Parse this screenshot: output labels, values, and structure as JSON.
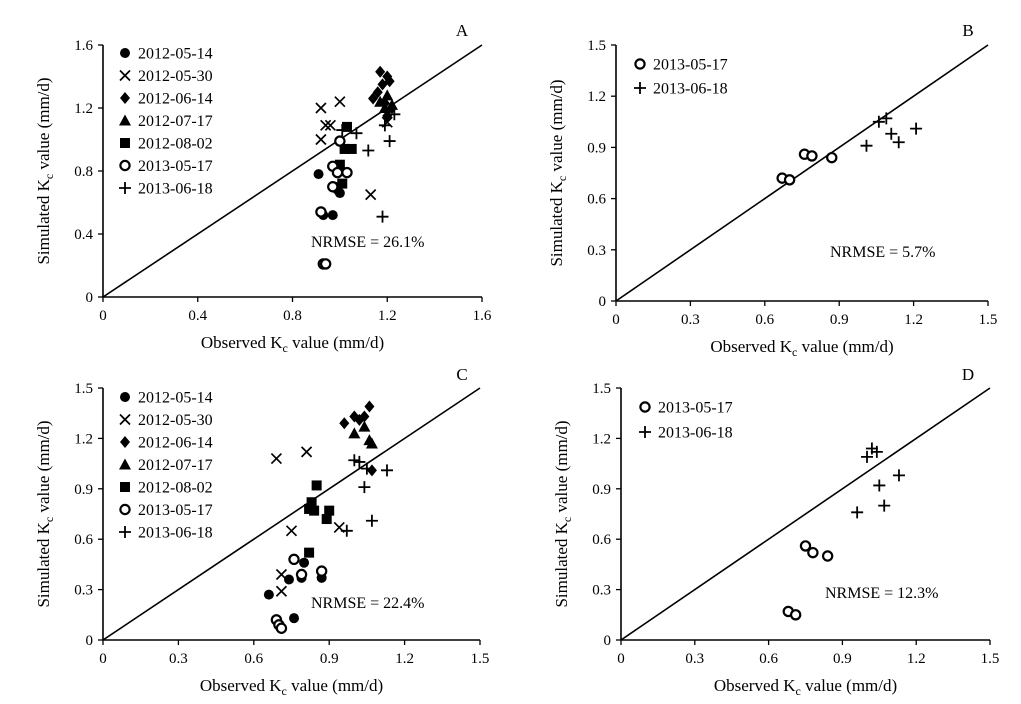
{
  "chart_data": [
    {
      "type": "scatter",
      "panel": "A",
      "xlabel": "Observed Kc value (mm/d)",
      "ylabel": "Simulated Kc value (mm/d)",
      "xlim": [
        0,
        1.6
      ],
      "ylim": [
        0,
        1.6
      ],
      "xticks": [
        "0",
        "0.4",
        "0.8",
        "1.2",
        "1.6"
      ],
      "yticks": [
        "0",
        "0.4",
        "0.8",
        "1.2",
        "1.6"
      ],
      "nrmse": "NRMSE = 26.1%",
      "one_to_one_line": true,
      "legend_position": "top-left",
      "series": [
        {
          "name": "2012-05-14",
          "marker": "filled-circle",
          "points": [
            [
              0.91,
              0.78
            ],
            [
              0.93,
              0.52
            ],
            [
              0.97,
              0.52
            ],
            [
              0.98,
              0.7
            ],
            [
              0.99,
              0.68
            ],
            [
              1.0,
              0.66
            ]
          ]
        },
        {
          "name": "2012-05-30",
          "marker": "x",
          "points": [
            [
              0.92,
              1.2
            ],
            [
              0.92,
              1.0
            ],
            [
              0.94,
              1.09
            ],
            [
              0.96,
              1.09
            ],
            [
              1.0,
              1.24
            ],
            [
              1.13,
              0.65
            ],
            [
              1.2,
              1.11
            ]
          ]
        },
        {
          "name": "2012-06-14",
          "marker": "filled-diamond",
          "points": [
            [
              1.14,
              1.26
            ],
            [
              1.16,
              1.3
            ],
            [
              1.17,
              1.43
            ],
            [
              1.18,
              1.35
            ],
            [
              1.2,
              1.4
            ],
            [
              1.21,
              1.37
            ],
            [
              1.19,
              1.23
            ],
            [
              1.22,
              1.2
            ],
            [
              1.2,
              1.15
            ]
          ]
        },
        {
          "name": "2012-07-17",
          "marker": "filled-triangle",
          "points": [
            [
              1.17,
              1.24
            ],
            [
              1.2,
              1.28
            ],
            [
              1.22,
              1.22
            ],
            [
              1.19,
              1.2
            ]
          ]
        },
        {
          "name": "2012-08-02",
          "marker": "filled-square",
          "points": [
            [
              1.0,
              0.84
            ],
            [
              1.02,
              0.94
            ],
            [
              1.03,
              1.08
            ],
            [
              1.05,
              0.94
            ],
            [
              1.01,
              0.72
            ]
          ]
        },
        {
          "name": "2013-05-17",
          "marker": "open-circle",
          "points": [
            [
              0.92,
              0.54
            ],
            [
              0.93,
              0.21
            ],
            [
              0.94,
              0.21
            ],
            [
              0.97,
              0.83
            ],
            [
              0.99,
              0.79
            ],
            [
              1.0,
              0.99
            ],
            [
              1.03,
              0.79
            ],
            [
              0.97,
              0.7
            ]
          ]
        },
        {
          "name": "2013-06-18",
          "marker": "plus",
          "points": [
            [
              1.01,
              1.06
            ],
            [
              1.07,
              1.04
            ],
            [
              1.12,
              0.93
            ],
            [
              1.18,
              0.51
            ],
            [
              1.19,
              1.09
            ],
            [
              1.23,
              1.16
            ],
            [
              1.21,
              0.99
            ]
          ]
        }
      ]
    },
    {
      "type": "scatter",
      "panel": "B",
      "xlabel": "Observed Kc value (mm/d)",
      "ylabel": "Simulated Kc value (mm/d)",
      "xlim": [
        0,
        1.5
      ],
      "ylim": [
        0,
        1.5
      ],
      "xticks": [
        "0",
        "0.3",
        "0.6",
        "0.9",
        "1.2",
        "1.5"
      ],
      "yticks": [
        "0",
        "0.3",
        "0.6",
        "0.9",
        "1.2",
        "1.5"
      ],
      "nrmse": "NRMSE = 5.7%",
      "one_to_one_line": true,
      "legend_position": "top-left",
      "series": [
        {
          "name": "2013-05-17",
          "marker": "open-circle",
          "points": [
            [
              0.67,
              0.72
            ],
            [
              0.7,
              0.71
            ],
            [
              0.76,
              0.86
            ],
            [
              0.79,
              0.85
            ],
            [
              0.87,
              0.84
            ]
          ]
        },
        {
          "name": "2013-06-18",
          "marker": "plus",
          "points": [
            [
              1.01,
              0.91
            ],
            [
              1.06,
              1.05
            ],
            [
              1.09,
              1.07
            ],
            [
              1.11,
              0.98
            ],
            [
              1.14,
              0.93
            ],
            [
              1.21,
              1.01
            ]
          ]
        }
      ]
    },
    {
      "type": "scatter",
      "panel": "C",
      "xlabel": "Observed Kc value (mm/d)",
      "ylabel": "Simulated Kc value (mm/d)",
      "xlim": [
        0,
        1.5
      ],
      "ylim": [
        0,
        1.5
      ],
      "xticks": [
        "0",
        "0.3",
        "0.6",
        "0.9",
        "1.2",
        "1.5"
      ],
      "yticks": [
        "0",
        "0.3",
        "0.6",
        "0.9",
        "1.2",
        "1.5"
      ],
      "nrmse": "NRMSE = 22.4%",
      "one_to_one_line": true,
      "legend_position": "top-left",
      "series": [
        {
          "name": "2012-05-14",
          "marker": "filled-circle",
          "points": [
            [
              0.66,
              0.27
            ],
            [
              0.74,
              0.36
            ],
            [
              0.76,
              0.13
            ],
            [
              0.79,
              0.37
            ],
            [
              0.8,
              0.46
            ],
            [
              0.87,
              0.37
            ]
          ]
        },
        {
          "name": "2012-05-30",
          "marker": "x",
          "points": [
            [
              0.69,
              1.08
            ],
            [
              0.71,
              0.29
            ],
            [
              0.71,
              0.39
            ],
            [
              0.75,
              0.65
            ],
            [
              0.81,
              1.12
            ],
            [
              0.94,
              0.67
            ]
          ]
        },
        {
          "name": "2012-06-14",
          "marker": "filled-diamond",
          "points": [
            [
              0.96,
              1.29
            ],
            [
              1.0,
              1.33
            ],
            [
              1.02,
              1.31
            ],
            [
              1.04,
              1.33
            ],
            [
              1.06,
              1.39
            ],
            [
              1.07,
              1.01
            ]
          ]
        },
        {
          "name": "2012-07-17",
          "marker": "filled-triangle",
          "points": [
            [
              1.0,
              1.23
            ],
            [
              1.04,
              1.27
            ],
            [
              1.06,
              1.19
            ],
            [
              1.07,
              1.17
            ]
          ]
        },
        {
          "name": "2012-08-02",
          "marker": "filled-square",
          "points": [
            [
              0.82,
              0.52
            ],
            [
              0.82,
              0.78
            ],
            [
              0.83,
              0.82
            ],
            [
              0.84,
              0.77
            ],
            [
              0.85,
              0.92
            ],
            [
              0.9,
              0.77
            ],
            [
              0.89,
              0.72
            ]
          ]
        },
        {
          "name": "2013-05-17",
          "marker": "open-circle",
          "points": [
            [
              0.69,
              0.12
            ],
            [
              0.7,
              0.09
            ],
            [
              0.71,
              0.07
            ],
            [
              0.76,
              0.48
            ],
            [
              0.79,
              0.39
            ],
            [
              0.87,
              0.41
            ]
          ]
        },
        {
          "name": "2013-06-18",
          "marker": "plus",
          "points": [
            [
              0.97,
              0.65
            ],
            [
              1.0,
              1.07
            ],
            [
              1.02,
              1.06
            ],
            [
              1.04,
              0.91
            ],
            [
              1.05,
              1.02
            ],
            [
              1.07,
              0.71
            ],
            [
              1.13,
              1.01
            ]
          ]
        }
      ]
    },
    {
      "type": "scatter",
      "panel": "D",
      "xlabel": "Observed Kc value (mm/d)",
      "ylabel": "Simulated Kc value (mm/d)",
      "xlim": [
        0,
        1.5
      ],
      "ylim": [
        0,
        1.5
      ],
      "xticks": [
        "0",
        "0.3",
        "0.6",
        "0.9",
        "1.2",
        "1.5"
      ],
      "yticks": [
        "0",
        "0.3",
        "0.6",
        "0.9",
        "1.2",
        "1.5"
      ],
      "nrmse": "NRMSE = 12.3%",
      "one_to_one_line": true,
      "legend_position": "top-left",
      "series": [
        {
          "name": "2013-05-17",
          "marker": "open-circle",
          "points": [
            [
              0.68,
              0.17
            ],
            [
              0.71,
              0.15
            ],
            [
              0.75,
              0.56
            ],
            [
              0.78,
              0.52
            ],
            [
              0.84,
              0.5
            ]
          ]
        },
        {
          "name": "2013-06-18",
          "marker": "plus",
          "points": [
            [
              0.96,
              0.76
            ],
            [
              1.0,
              1.09
            ],
            [
              1.02,
              1.14
            ],
            [
              1.04,
              1.12
            ],
            [
              1.05,
              0.92
            ],
            [
              1.07,
              0.8
            ],
            [
              1.13,
              0.98
            ]
          ]
        }
      ]
    }
  ]
}
